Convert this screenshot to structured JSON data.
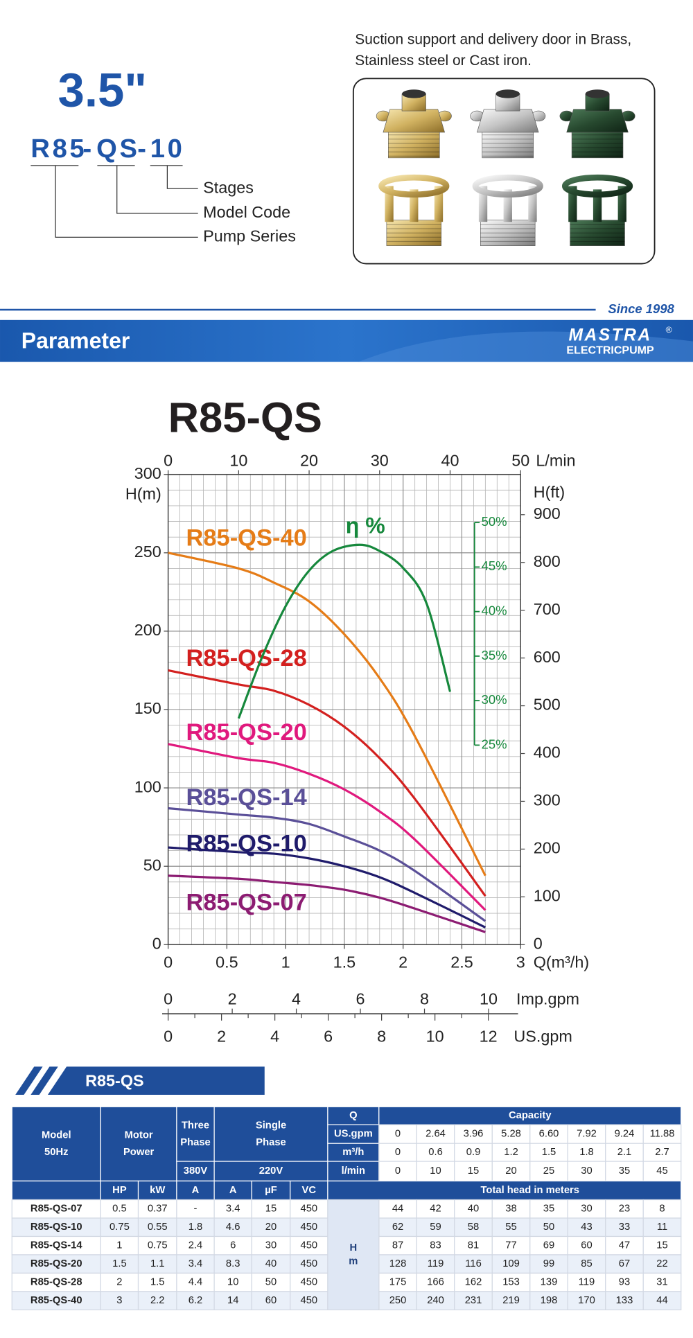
{
  "header": {
    "size": "3.5\"",
    "model_parts": [
      "R85",
      "QS",
      "10"
    ],
    "separator": "-",
    "callouts": [
      "Stages",
      "Model Code",
      "Pump Series"
    ],
    "caption": [
      "Suction support and delivery door in Brass,",
      "Stainless steel or Cast iron."
    ]
  },
  "banner": {
    "since": "Since 1998",
    "title": "Parameter",
    "logo": "MASTRA",
    "logo_mark": "®",
    "logo_sub": "ELECTRICPUMP"
  },
  "chart_data": {
    "type": "line",
    "title": "R85-QS",
    "xlabel": "Q(m³/h)",
    "ylabel": "H(m)",
    "xlim": [
      0,
      3
    ],
    "xticks": [
      0,
      0.5,
      1,
      1.5,
      2,
      2.5,
      3
    ],
    "ylim": [
      0,
      300
    ],
    "yticks": [
      0,
      50,
      100,
      150,
      200,
      250,
      300
    ],
    "x2label": "L/min",
    "x2lim": [
      0,
      50
    ],
    "x2ticks": [
      0,
      10,
      20,
      30,
      40,
      50
    ],
    "y3label": "H(ft)",
    "y3lim": [
      0,
      984.25
    ],
    "y3ticks": [
      0,
      100,
      200,
      300,
      400,
      500,
      600,
      700,
      800,
      900
    ],
    "imp_label": "Imp.gpm",
    "imp_lim": [
      0,
      11.0
    ],
    "imp_ticks": [
      0,
      2,
      4,
      6,
      8,
      10
    ],
    "us_label": "US.gpm",
    "us_lim": [
      0,
      13.21
    ],
    "us_ticks": [
      0,
      2,
      4,
      6,
      8,
      10,
      12
    ],
    "y2lim": [
      2.6,
      55.4
    ],
    "y2ticks": [
      {
        "value": 25,
        "label": "25%"
      },
      {
        "value": 30,
        "label": "30%"
      },
      {
        "value": 35,
        "label": "35%"
      },
      {
        "value": 40,
        "label": "40%"
      },
      {
        "value": 45,
        "label": "45%"
      },
      {
        "value": 50,
        "label": "50%"
      }
    ],
    "grid": true,
    "minor_grid_step": [
      0.1,
      10
    ],
    "x": [
      0,
      0.6,
      0.9,
      1.2,
      1.5,
      1.8,
      2.1,
      2.7
    ],
    "series": [
      {
        "name": "R85-QS-40",
        "color": "#e57c17",
        "values": [
          250,
          240,
          231,
          219,
          198,
          170,
          133,
          44
        ]
      },
      {
        "name": "R85-QS-28",
        "color": "#d3201f",
        "values": [
          175,
          166,
          162,
          153,
          139,
          119,
          93,
          31
        ]
      },
      {
        "name": "R85-QS-20",
        "color": "#e0197d",
        "values": [
          128,
          119,
          116,
          109,
          99,
          85,
          67,
          22
        ]
      },
      {
        "name": "R85-QS-14",
        "color": "#5a4f98",
        "values": [
          87,
          83,
          81,
          77,
          69,
          60,
          47,
          15
        ]
      },
      {
        "name": "R85-QS-10",
        "color": "#1f1b6b",
        "values": [
          62,
          59,
          58,
          55,
          50,
          43,
          33,
          11
        ]
      },
      {
        "name": "R85-QS-07",
        "color": "#8c1c72",
        "values": [
          44,
          42,
          40,
          38,
          35,
          30,
          23,
          8
        ]
      },
      {
        "name": "η %",
        "color": "#16883c",
        "axis": "y2",
        "x": [
          0.6,
          0.8,
          1.0,
          1.2,
          1.4,
          1.63,
          1.8,
          2.0,
          2.2,
          2.4
        ],
        "values": [
          28,
          34.9,
          40.6,
          44.6,
          46.8,
          47.5,
          46.8,
          44.9,
          40.9,
          31
        ]
      }
    ]
  },
  "table": {
    "title": "R85-QS",
    "model_head": [
      "Model",
      "50Hz"
    ],
    "motor_head": [
      "Motor",
      "Power"
    ],
    "three_phase": [
      "Three",
      "Phase"
    ],
    "three_voltage": "380V",
    "single_phase": [
      "Single",
      "Phase"
    ],
    "single_voltage": "220V",
    "q_head": "Q",
    "capacity_head": "Capacity",
    "flow_units": [
      "US.gpm",
      "m³/h",
      "l/min"
    ],
    "flow_rows": [
      [
        "0",
        "2.64",
        "3.96",
        "5.28",
        "6.60",
        "7.92",
        "9.24",
        "11.88"
      ],
      [
        "0",
        "0.6",
        "0.9",
        "1.2",
        "1.5",
        "1.8",
        "2.1",
        "2.7"
      ],
      [
        "0",
        "10",
        "15",
        "20",
        "25",
        "30",
        "35",
        "45"
      ]
    ],
    "sub_head": [
      "HP",
      "kW",
      "A",
      "A",
      "µF",
      "VC"
    ],
    "head_label": "Total head in meters",
    "h_unit": [
      "H",
      "m"
    ],
    "rows": [
      [
        "R85-QS-07",
        "0.5",
        "0.37",
        "-",
        "3.4",
        "15",
        "450",
        "44",
        "42",
        "40",
        "38",
        "35",
        "30",
        "23",
        "8"
      ],
      [
        "R85-QS-10",
        "0.75",
        "0.55",
        "1.8",
        "4.6",
        "20",
        "450",
        "62",
        "59",
        "58",
        "55",
        "50",
        "43",
        "33",
        "11"
      ],
      [
        "R85-QS-14",
        "1",
        "0.75",
        "2.4",
        "6",
        "30",
        "450",
        "87",
        "83",
        "81",
        "77",
        "69",
        "60",
        "47",
        "15"
      ],
      [
        "R85-QS-20",
        "1.5",
        "1.1",
        "3.4",
        "8.3",
        "40",
        "450",
        "128",
        "119",
        "116",
        "109",
        "99",
        "85",
        "67",
        "22"
      ],
      [
        "R85-QS-28",
        "2",
        "1.5",
        "4.4",
        "10",
        "50",
        "450",
        "175",
        "166",
        "162",
        "153",
        "139",
        "119",
        "93",
        "31"
      ],
      [
        "R85-QS-40",
        "3",
        "2.2",
        "6.2",
        "14",
        "60",
        "450",
        "250",
        "240",
        "231",
        "219",
        "198",
        "170",
        "133",
        "44"
      ]
    ]
  }
}
